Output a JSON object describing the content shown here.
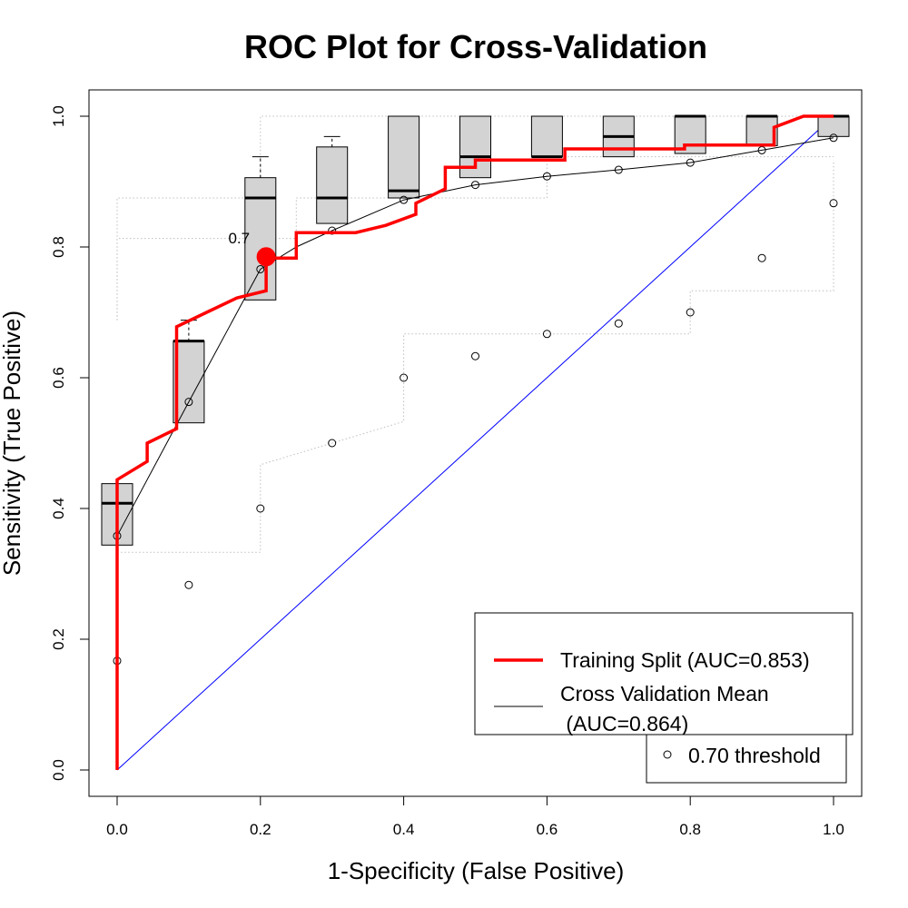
{
  "chart_data": {
    "type": "line",
    "title": "ROC Plot for Cross-Validation",
    "xlabel": "1-Specificity (False Positive)",
    "ylabel": "Sensitivity (True Positive)",
    "xlim": [
      0,
      1
    ],
    "ylim": [
      0,
      1
    ],
    "x_ticks": [
      "0.0",
      "0.2",
      "0.4",
      "0.6",
      "0.8",
      "1.0"
    ],
    "y_ticks": [
      "0.0",
      "0.2",
      "0.4",
      "0.6",
      "0.8",
      "1.0"
    ],
    "grid": false,
    "colors": {
      "training": "#ff0000",
      "cv_mean": "#000000",
      "diagonal": "#0000ff",
      "box_fill": "#d3d3d3",
      "envelope": "#bebebe"
    },
    "series": [
      {
        "name": "Training Split (AUC=0.853)",
        "x": [
          0,
          0,
          0,
          0.042,
          0.042,
          0.083,
          0.083,
          0.125,
          0.167,
          0.208,
          0.208,
          0.25,
          0.25,
          0.333,
          0.375,
          0.417,
          0.417,
          0.458,
          0.458,
          0.5,
          0.5,
          0.625,
          0.625,
          0.792,
          0.792,
          0.917,
          0.917,
          0.958,
          1.0
        ],
        "y": [
          0,
          0.35,
          0.444,
          0.472,
          0.5,
          0.522,
          0.678,
          0.7,
          0.722,
          0.733,
          0.783,
          0.783,
          0.822,
          0.822,
          0.833,
          0.85,
          0.867,
          0.889,
          0.922,
          0.922,
          0.933,
          0.933,
          0.95,
          0.95,
          0.956,
          0.956,
          0.983,
          1.0,
          1.0
        ]
      },
      {
        "name": "Cross Validation Mean (AUC=0.864)",
        "x": [
          0,
          0.1,
          0.2,
          0.25,
          0.3,
          0.4,
          0.5,
          0.6,
          0.7,
          0.8,
          0.9,
          1.0
        ],
        "y": [
          0.358,
          0.563,
          0.766,
          0.8,
          0.825,
          0.872,
          0.895,
          0.908,
          0.918,
          0.929,
          0.948,
          0.967
        ]
      },
      {
        "name": "0.70 threshold",
        "x": [
          0,
          0.1,
          0.2,
          0.3,
          0.4,
          0.5,
          0.6,
          0.7,
          0.8,
          0.9,
          1.0
        ],
        "y": [
          0.167,
          0.283,
          0.4,
          0.5,
          0.6,
          0.633,
          0.667,
          0.683,
          0.7,
          0.783,
          0.867
        ]
      }
    ],
    "cv_mean_points": {
      "x": [
        0,
        0.1,
        0.2,
        0.3,
        0.4,
        0.5,
        0.6,
        0.7,
        0.8,
        0.9,
        1.0
      ],
      "y": [
        0.358,
        0.563,
        0.766,
        0.825,
        0.872,
        0.895,
        0.908,
        0.918,
        0.929,
        0.948,
        0.967
      ]
    },
    "boxplots": [
      {
        "x": 0.0,
        "q1": 0.344,
        "median": 0.408,
        "q3": 0.438
      },
      {
        "x": 0.1,
        "q1": 0.531,
        "median": 0.656,
        "q3": 0.656,
        "whisker_high": 0.688
      },
      {
        "x": 0.2,
        "q1": 0.719,
        "median": 0.875,
        "q3": 0.906,
        "whisker_high": 0.938
      },
      {
        "x": 0.3,
        "q1": 0.836,
        "median": 0.875,
        "q3": 0.953,
        "whisker_high": 0.969
      },
      {
        "x": 0.4,
        "q1": 0.875,
        "median": 0.886,
        "q3": 1.0
      },
      {
        "x": 0.5,
        "q1": 0.906,
        "median": 0.938,
        "q3": 1.0
      },
      {
        "x": 0.6,
        "q1": 0.938,
        "median": 0.938,
        "q3": 1.0
      },
      {
        "x": 0.7,
        "q1": 0.938,
        "median": 0.969,
        "q3": 1.0
      },
      {
        "x": 0.8,
        "q1": 0.943,
        "median": 1.0,
        "q3": 1.0
      },
      {
        "x": 0.9,
        "q1": 0.955,
        "median": 1.0,
        "q3": 1.0
      },
      {
        "x": 1.0,
        "q1": 0.969,
        "median": 1.0,
        "q3": 1.0
      }
    ],
    "envelope_upper": {
      "x": [
        0,
        0,
        0.2,
        0.2,
        1.0,
        1.0
      ],
      "y": [
        0.688,
        0.875,
        0.875,
        1.0,
        1.0,
        1.0
      ]
    },
    "envelope_lower": {
      "x": [
        0,
        0,
        0.2,
        0.2,
        0.4,
        0.4,
        0.8,
        0.8,
        1.0,
        1.0
      ],
      "y": [
        0,
        0.333,
        0.333,
        0.467,
        0.533,
        0.667,
        0.667,
        0.733,
        0.733,
        0.933
      ]
    },
    "envelope_inner": {
      "x": [
        0,
        0,
        0.25,
        0.25,
        0.6,
        0.6,
        1.0
      ],
      "y": [
        0.688,
        0.813,
        0.813,
        0.875,
        0.875,
        0.938,
        0.938
      ]
    },
    "threshold_marker": {
      "x": 0.208,
      "y": 0.785,
      "label": "0.7"
    },
    "legend": {
      "position": "bottom-right",
      "entries": [
        {
          "label": "Training Split (AUC=0.853)"
        },
        {
          "label": "Cross Validation Mean",
          "label2": " (AUC=0.864)"
        }
      ],
      "threshold_entry": "0.70 threshold"
    }
  }
}
